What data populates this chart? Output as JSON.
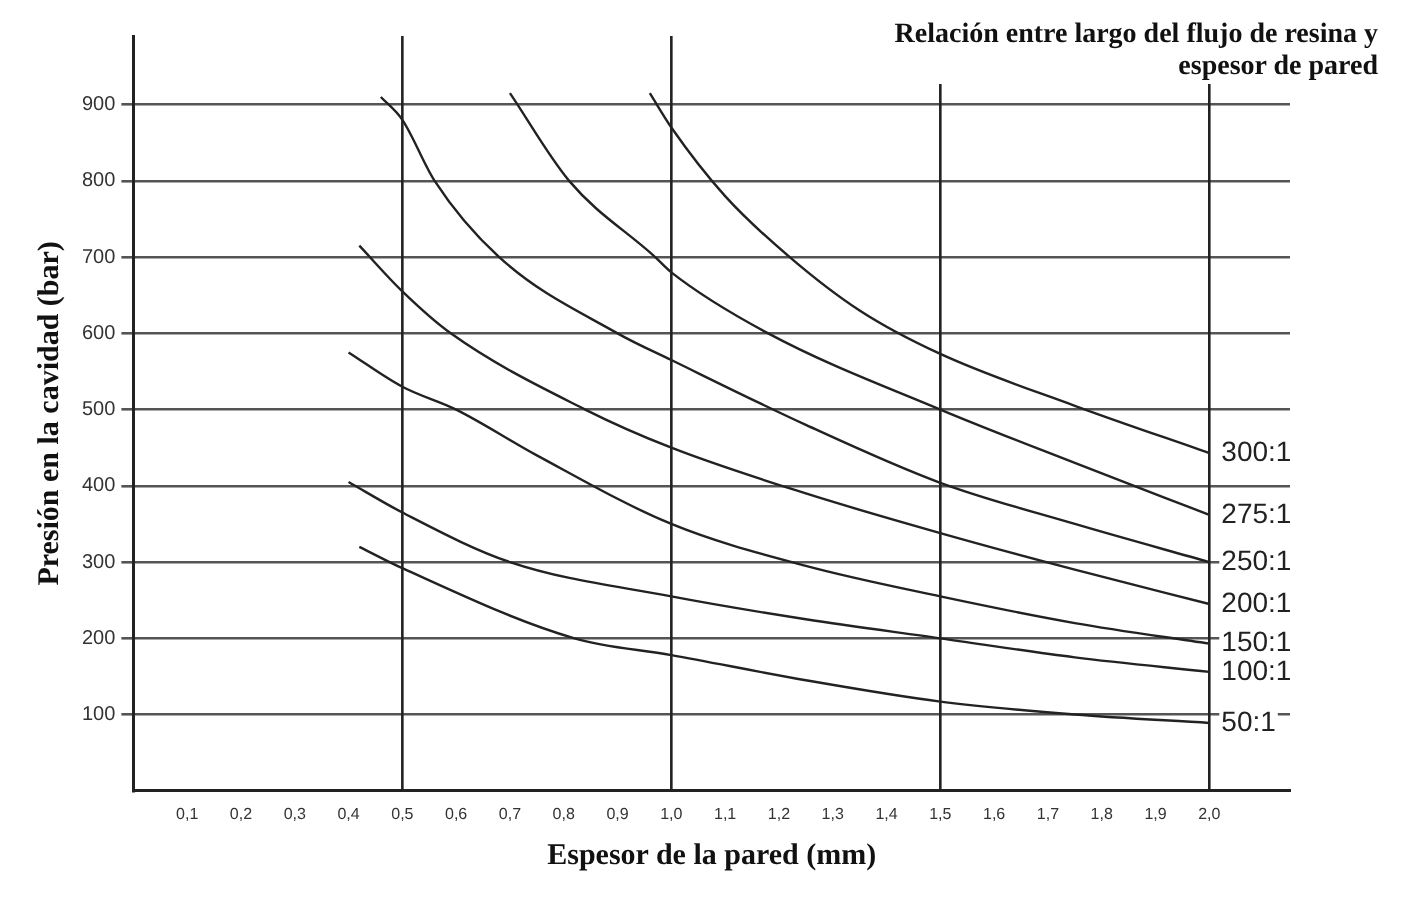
{
  "chart_data": {
    "type": "line",
    "xlabel": "Espesor de la pared (mm)",
    "ylabel": "Presión en la cavidad (bar)",
    "legend_title": "Relación entre largo del flujo de resina y espesor de pared",
    "xlim": [
      0,
      2.15
    ],
    "ylim": [
      0,
      990
    ],
    "xticks": [
      {
        "value": 0.1,
        "label": "0,1"
      },
      {
        "value": 0.2,
        "label": "0,2"
      },
      {
        "value": 0.3,
        "label": "0,3"
      },
      {
        "value": 0.4,
        "label": "0,4"
      },
      {
        "value": 0.5,
        "label": "0,5"
      },
      {
        "value": 0.6,
        "label": "0,6"
      },
      {
        "value": 0.7,
        "label": "0,7"
      },
      {
        "value": 0.8,
        "label": "0,8"
      },
      {
        "value": 0.9,
        "label": "0,9"
      },
      {
        "value": 1.0,
        "label": "1,0"
      },
      {
        "value": 1.1,
        "label": "1,1"
      },
      {
        "value": 1.2,
        "label": "1,2"
      },
      {
        "value": 1.3,
        "label": "1,3"
      },
      {
        "value": 1.4,
        "label": "1,4"
      },
      {
        "value": 1.5,
        "label": "1,5"
      },
      {
        "value": 1.6,
        "label": "1,6"
      },
      {
        "value": 1.7,
        "label": "1,7"
      },
      {
        "value": 1.8,
        "label": "1,8"
      },
      {
        "value": 1.9,
        "label": "1,9"
      },
      {
        "value": 2.0,
        "label": "2,0"
      }
    ],
    "yticks": [
      100,
      200,
      300,
      400,
      500,
      600,
      700,
      800,
      900
    ],
    "grid": "y",
    "legend": false,
    "marker": "none",
    "ref_lines": [
      {
        "axis": "x",
        "value": 0.5
      },
      {
        "axis": "x",
        "value": 1.0
      },
      {
        "axis": "x",
        "value": 1.5
      },
      {
        "axis": "x",
        "value": 2.0
      }
    ],
    "series": [
      {
        "name": "300:1",
        "color": "#222222",
        "x": [
          0.96,
          1.0,
          1.1,
          1.22,
          1.35,
          1.5,
          1.75,
          2.0
        ],
        "values": [
          915,
          870,
          780,
          700,
          630,
          573,
          505,
          443
        ]
      },
      {
        "name": "275:1",
        "color": "#222222",
        "x": [
          0.7,
          0.81,
          0.97,
          1.0,
          1.18,
          1.5,
          1.75,
          2.0
        ],
        "values": [
          915,
          800,
          700,
          680,
          600,
          500,
          430,
          362
        ]
      },
      {
        "name": "250:1",
        "color": "#222222",
        "x": [
          0.46,
          0.5,
          0.56,
          0.68,
          0.9,
          1.0,
          1.25,
          1.5,
          1.75,
          2.0
        ],
        "values": [
          910,
          880,
          800,
          700,
          600,
          565,
          480,
          404,
          350,
          300
        ]
      },
      {
        "name": "200:1",
        "color": "#222222",
        "x": [
          0.42,
          0.5,
          0.59,
          0.84,
          1.0,
          1.25,
          1.5,
          1.75,
          2.0
        ],
        "values": [
          715,
          655,
          600,
          500,
          450,
          390,
          338,
          290,
          245
        ]
      },
      {
        "name": "150:1",
        "color": "#222222",
        "x": [
          0.4,
          0.5,
          0.6,
          0.75,
          1.0,
          1.25,
          1.5,
          1.75,
          2.0
        ],
        "values": [
          575,
          530,
          500,
          440,
          350,
          295,
          255,
          220,
          193
        ]
      },
      {
        "name": "100:1",
        "color": "#222222",
        "x": [
          0.4,
          0.5,
          0.7,
          1.0,
          1.25,
          1.5,
          1.75,
          2.0
        ],
        "values": [
          405,
          365,
          300,
          255,
          225,
          200,
          175,
          156
        ]
      },
      {
        "name": "50:1",
        "color": "#222222",
        "x": [
          0.42,
          0.5,
          0.82,
          1.0,
          1.25,
          1.5,
          1.75,
          2.0
        ],
        "values": [
          320,
          292,
          200,
          178,
          145,
          117,
          100,
          89
        ]
      }
    ]
  }
}
